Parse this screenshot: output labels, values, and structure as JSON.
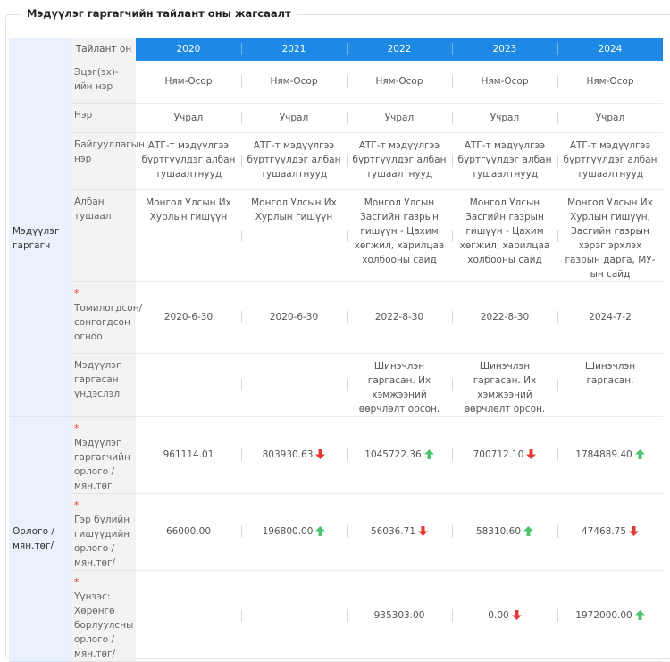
{
  "title": "Мэдүүлэг гаргагчийн тайлант оны жагсаалт",
  "table": {
    "header": [
      "Тайлант он",
      "2020",
      "2021",
      "2022",
      "2023",
      "2024"
    ],
    "groups": [
      {
        "label": "Мэдүүлэг гаргагч",
        "rows": [
          {
            "label": "Эцэг(эх)-ийн нэр",
            "cells": [
              {
                "text": "Ням-Осор"
              },
              {
                "text": "Ням-Осор"
              },
              {
                "text": "Ням-Осор"
              },
              {
                "text": "Ням-Осор"
              },
              {
                "text": "Ням-Осор"
              }
            ]
          },
          {
            "label": "Нэр",
            "cells": [
              {
                "text": "Учрал"
              },
              {
                "text": "Учрал"
              },
              {
                "text": "Учрал"
              },
              {
                "text": "Учрал"
              },
              {
                "text": "Учрал"
              }
            ]
          },
          {
            "label": "Байгууллагын нэр",
            "cells": [
              {
                "text": "АТГ-т мэдүүлгээ бүртгүүлдэг албан тушаалтнууд"
              },
              {
                "text": "АТГ-т мэдүүлгээ бүртгүүлдэг албан тушаалтнууд"
              },
              {
                "text": "АТГ-т мэдүүлгээ бүртгүүлдэг албан тушаалтнууд"
              },
              {
                "text": "АТГ-т мэдүүлгээ бүртгүүлдэг албан тушаалтнууд"
              },
              {
                "text": "АТГ-т мэдүүлгээ бүртгүүлдэг албан тушаалтнууд"
              }
            ]
          },
          {
            "label": "Албан тушаал",
            "cells": [
              {
                "text": "Монгол Улсын Их Хурлын гишүүн"
              },
              {
                "text": "Монгол Улсын Их Хурлын гишүүн"
              },
              {
                "text": "Монгол Улсын Засгийн газрын гишүүн - Цахим хөгжил, харилцаа холбооны сайд"
              },
              {
                "text": "Монгол Улсын Засгийн газрын гишүүн - Цахим хөгжил, харилцаа холбооны сайд"
              },
              {
                "text": "Монгол Улсын Их Хурлын гишүүн, Засгийн газрын хэрэг эрхлэх газрын дарга, МУ-ын сайд"
              }
            ]
          },
          {
            "label": "Томилогдсон/ сонгогдсон огноо",
            "required": "*",
            "cells": [
              {
                "text": "2020-6-30"
              },
              {
                "text": "2020-6-30"
              },
              {
                "text": "2022-8-30"
              },
              {
                "text": "2022-8-30"
              },
              {
                "text": "2024-7-2"
              }
            ]
          },
          {
            "label": "Мэдүүлэг гаргасан үндэслэл",
            "cells": [
              null,
              null,
              {
                "text": "Шинэчлэн гаргасан. Их хэмжээний өөрчлөлт орсон."
              },
              {
                "text": "Шинэчлэн гаргасан. Их хэмжээний өөрчлөлт орсон."
              },
              {
                "text": "Шинэчлэн гаргасан."
              }
            ]
          }
        ]
      },
      {
        "label": "Орлого / мян.төг/",
        "rows": [
          {
            "label": "Мэдүүлэг гаргагчийн орлого / мян.төг",
            "required": "*",
            "cells": [
              {
                "text": "961114.01"
              },
              {
                "text": "803930.63",
                "trend": "down"
              },
              {
                "text": "1045722.36",
                "trend": "up"
              },
              {
                "text": "700712.10",
                "trend": "down"
              },
              {
                "text": "1784889.40",
                "trend": "up"
              }
            ]
          },
          {
            "label": "Гэр бүлийн гишүүдийн орлого / мян.төг/",
            "required": "*",
            "cells": [
              {
                "text": "66000.00"
              },
              {
                "text": "196800.00",
                "trend": "up"
              },
              {
                "text": "56036.71",
                "trend": "down"
              },
              {
                "text": "58310.60",
                "trend": "up"
              },
              {
                "text": "47468.75",
                "trend": "down"
              }
            ]
          },
          {
            "label": "Үүнээс: Хөрөнгө борлуулсны орлого / мян.төг/",
            "required": "*",
            "cells": [
              null,
              null,
              {
                "text": "935303.00"
              },
              {
                "text": "0.00",
                "trend": "down"
              },
              {
                "text": "1972000.00",
                "trend": "up"
              }
            ]
          }
        ]
      }
    ]
  }
}
